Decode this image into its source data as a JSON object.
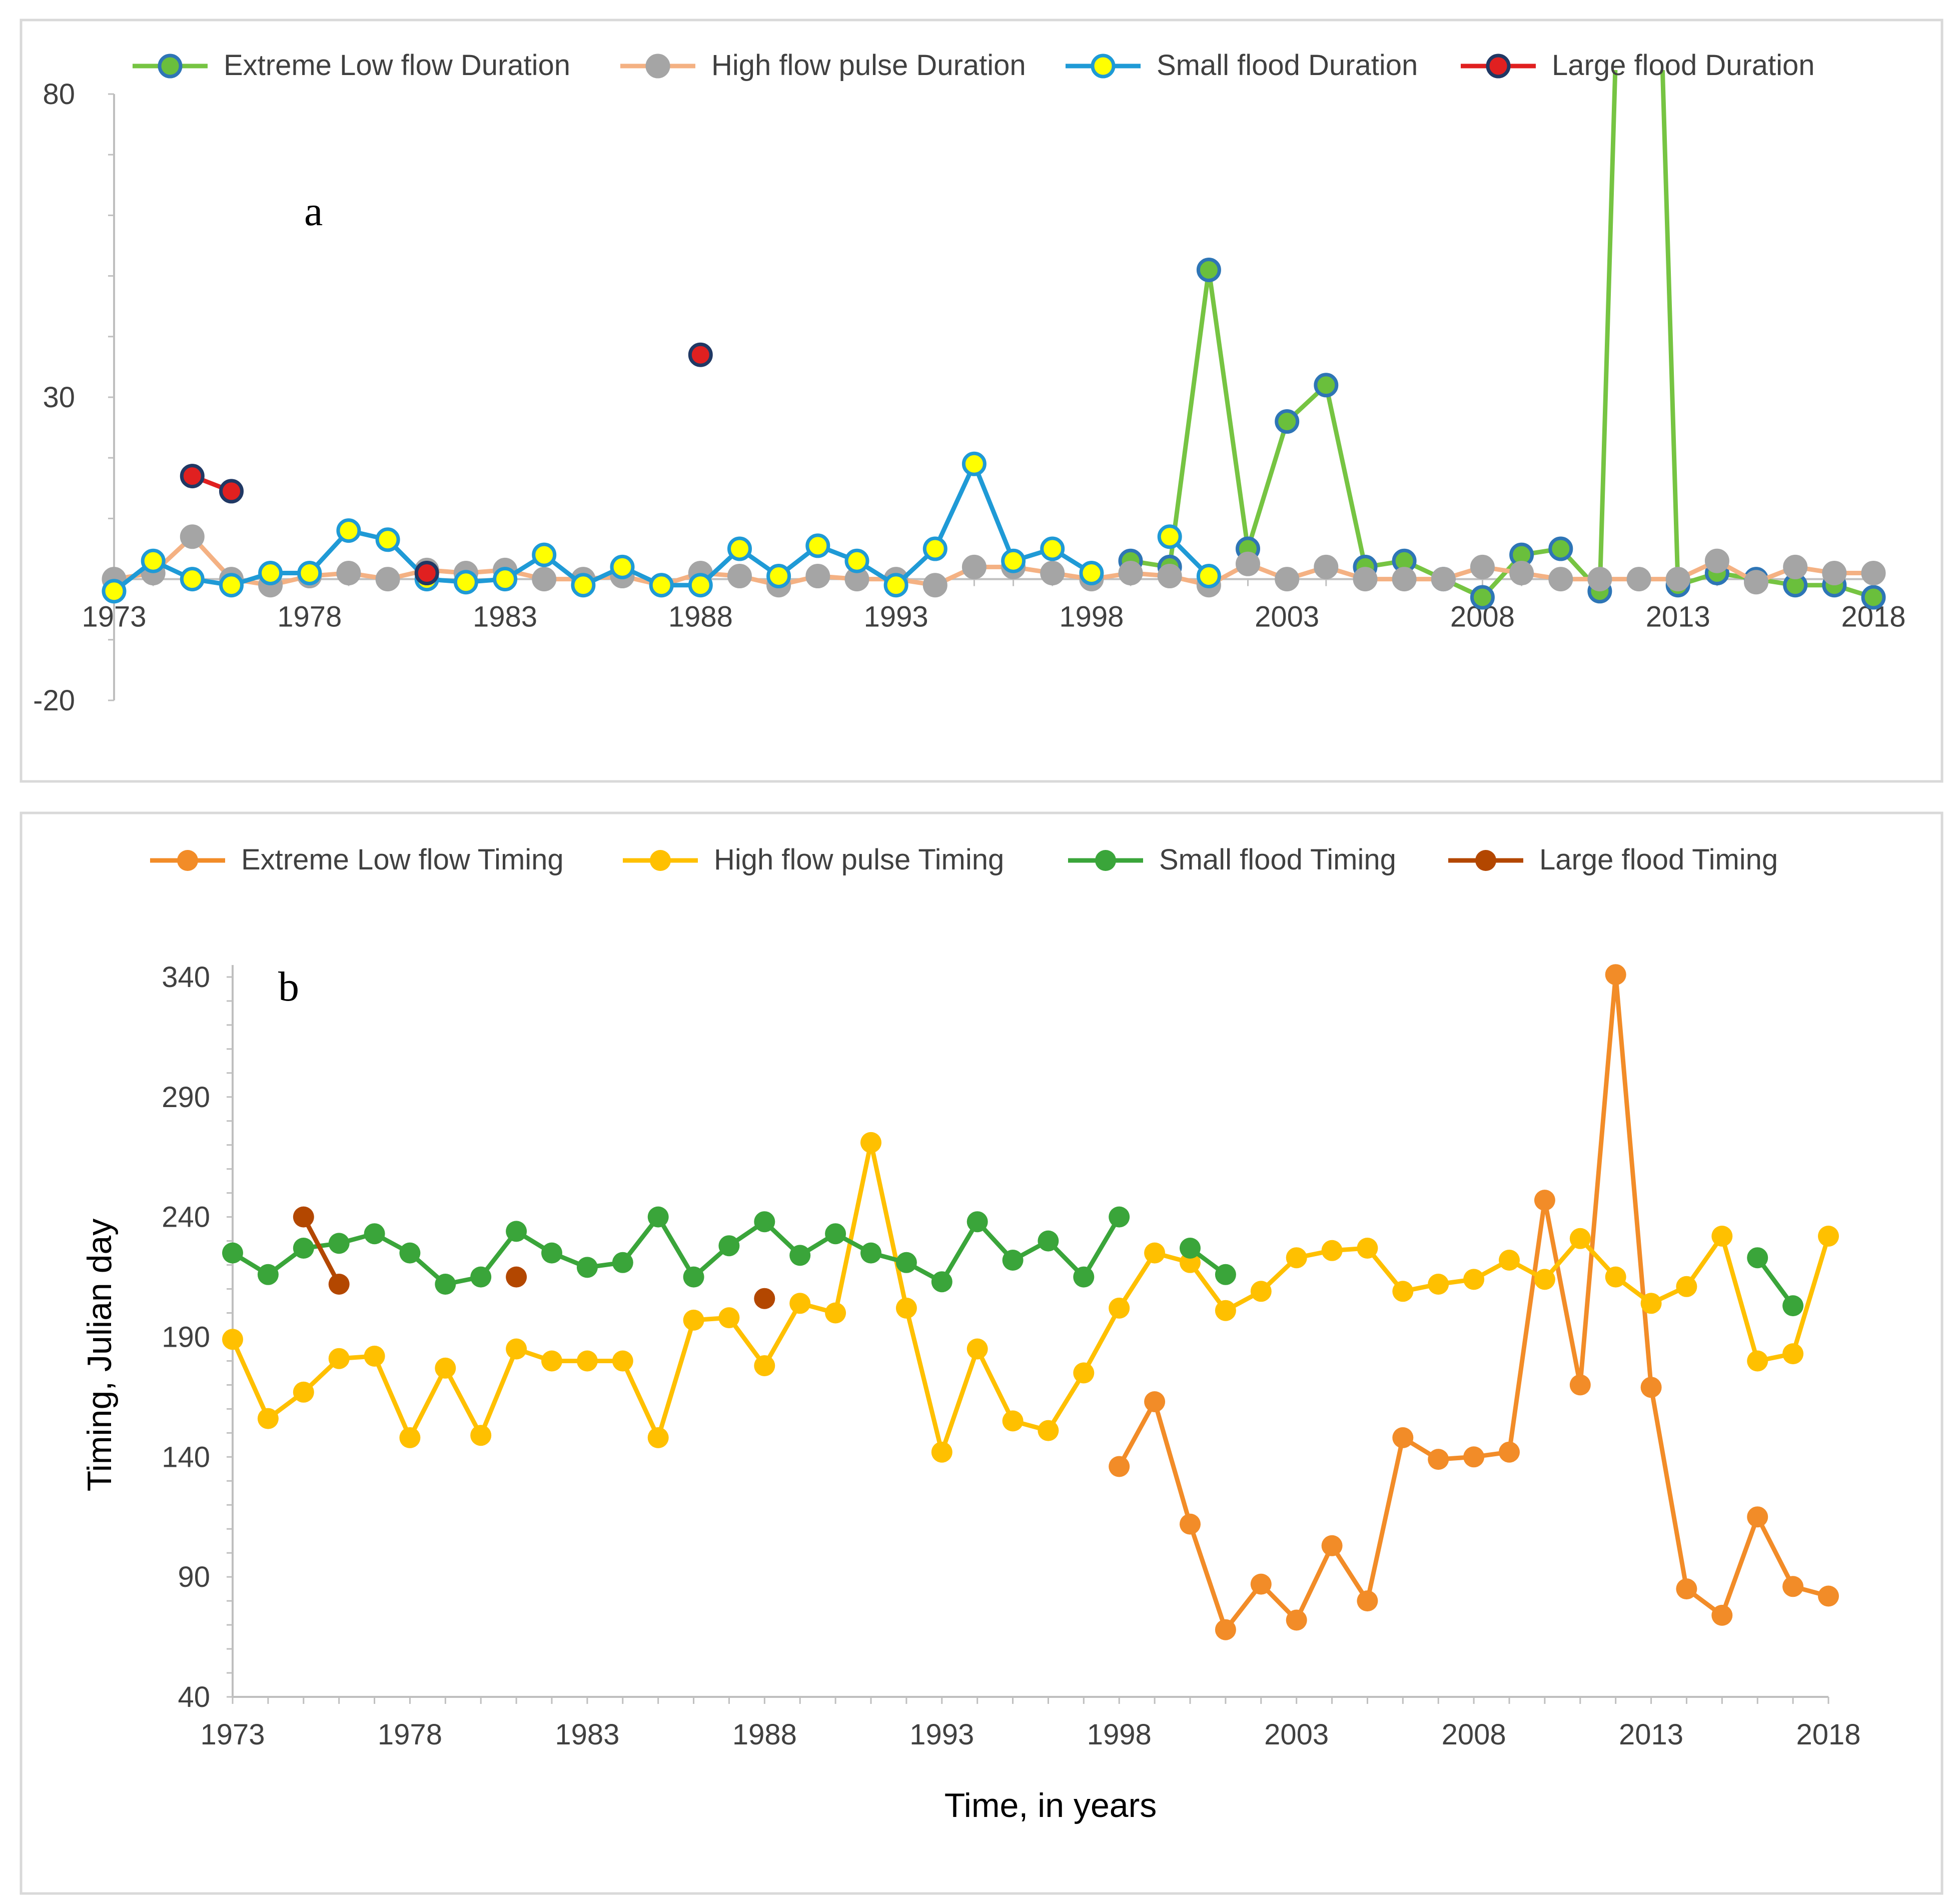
{
  "chart_data": [
    {
      "type": "line",
      "panel": "a",
      "title": "",
      "xlabel": "",
      "ylabel": "",
      "x_ticks": [
        "1973",
        "1978",
        "1983",
        "1988",
        "1993",
        "1998",
        "2003",
        "2008",
        "2013",
        "2018"
      ],
      "y_ticks": [
        "-20",
        "30",
        "80"
      ],
      "xlim": [
        1973,
        2018
      ],
      "ylim": [
        -20,
        80
      ],
      "x_axis_crossing_y": 0,
      "legend_position": "top",
      "series": [
        {
          "name": "Extreme Low flow Duration",
          "line_color": "#76c442",
          "marker_fill": "#6abf3c",
          "marker_edge": "#2e75b6",
          "points": [
            [
              1999,
              3
            ],
            [
              2000,
              2
            ],
            [
              2001,
              51
            ],
            [
              2002,
              5
            ],
            [
              2003,
              26
            ],
            [
              2004,
              32
            ],
            [
              2005,
              2
            ],
            [
              2006,
              3
            ],
            [
              2007,
              0
            ],
            [
              2008,
              -3
            ],
            [
              2009,
              4
            ],
            [
              2010,
              5
            ],
            [
              2011,
              -2
            ],
            [
              2011.4,
              85
            ],
            [
              2012.6,
              85
            ],
            [
              2013,
              -1
            ],
            [
              2014,
              1
            ],
            [
              2015,
              0
            ],
            [
              2016,
              -1
            ],
            [
              2017,
              -1
            ],
            [
              2018,
              -3
            ]
          ]
        },
        {
          "name": "High flow pulse Duration",
          "line_color": "#f4b183",
          "marker_fill": "#a5a5a5",
          "marker_edge": "#a5a5a5",
          "points": [
            [
              1973,
              0
            ],
            [
              1974,
              1
            ],
            [
              1975,
              7
            ],
            [
              1976,
              0
            ],
            [
              1977,
              -1
            ],
            [
              1978,
              0.5
            ],
            [
              1979,
              1
            ],
            [
              1980,
              0
            ],
            [
              1981,
              1.5
            ],
            [
              1982,
              1
            ],
            [
              1983,
              1.5
            ],
            [
              1984,
              0
            ],
            [
              1985,
              0
            ],
            [
              1986,
              0.5
            ],
            [
              1987,
              -1
            ],
            [
              1988,
              1
            ],
            [
              1989,
              0.5
            ],
            [
              1990,
              -1
            ],
            [
              1991,
              0.5
            ],
            [
              1992,
              0
            ],
            [
              1993,
              0
            ],
            [
              1994,
              -1
            ],
            [
              1995,
              2
            ],
            [
              1996,
              2
            ],
            [
              1997,
              1
            ],
            [
              1998,
              0
            ],
            [
              1999,
              1
            ],
            [
              2000,
              0.5
            ],
            [
              2001,
              -1
            ],
            [
              2002,
              2.5
            ],
            [
              2003,
              0
            ],
            [
              2004,
              2
            ],
            [
              2005,
              0
            ],
            [
              2006,
              0
            ],
            [
              2007,
              0
            ],
            [
              2008,
              2
            ],
            [
              2009,
              1
            ],
            [
              2010,
              0
            ],
            [
              2011,
              0
            ],
            [
              2012,
              0
            ],
            [
              2013,
              0
            ],
            [
              2014,
              3
            ],
            [
              2015,
              -0.5
            ],
            [
              2016,
              2
            ],
            [
              2017,
              1
            ],
            [
              2018,
              1
            ]
          ]
        },
        {
          "name": "Small flood Duration",
          "line_color": "#1f9ad6",
          "marker_fill": "#ffff00",
          "marker_edge": "#1f9ad6",
          "points": [
            [
              1973,
              -2
            ],
            [
              1974,
              3
            ],
            [
              1975,
              0
            ],
            [
              1976,
              -1
            ],
            [
              1977,
              1
            ],
            [
              1978,
              1
            ],
            [
              1979,
              8
            ],
            [
              1980,
              6.5
            ],
            [
              1981,
              0
            ],
            [
              1982,
              -0.5
            ],
            [
              1983,
              0
            ],
            [
              1984,
              4
            ],
            [
              1985,
              -1
            ],
            [
              1986,
              2
            ],
            [
              1987,
              -1
            ],
            [
              1988,
              -1
            ],
            [
              1989,
              5
            ],
            [
              1990,
              0.5
            ],
            [
              1991,
              5.5
            ],
            [
              1992,
              3
            ],
            [
              1993,
              -1
            ],
            [
              1994,
              5
            ],
            [
              1995,
              19
            ],
            [
              1996,
              3
            ],
            [
              1997,
              5
            ],
            [
              1998,
              1
            ],
            [
              1999,
              null
            ],
            [
              2000,
              7
            ],
            [
              2001,
              0.5
            ]
          ]
        },
        {
          "name": "Large flood Duration",
          "line_color": "#e02020",
          "marker_fill": "#e02020",
          "marker_edge": "#203864",
          "points": [
            [
              1975,
              17
            ],
            [
              1976,
              14.5
            ],
            [
              1977,
              null
            ],
            [
              1981,
              1
            ],
            [
              1982,
              null
            ],
            [
              1988,
              37
            ]
          ]
        }
      ]
    },
    {
      "type": "line",
      "panel": "b",
      "title": "",
      "xlabel": "Time, in years",
      "ylabel": "Timing, Julian day",
      "x_ticks": [
        "1973",
        "1978",
        "1983",
        "1988",
        "1993",
        "1998",
        "2003",
        "2008",
        "2013",
        "2018"
      ],
      "y_ticks": [
        "40",
        "90",
        "140",
        "190",
        "240",
        "290",
        "340"
      ],
      "xlim": [
        1973,
        2018
      ],
      "ylim": [
        40,
        350
      ],
      "legend_position": "top",
      "series": [
        {
          "name": "Extreme Low flow Timing",
          "line_color": "#f28c28",
          "marker_fill": "#f28c28",
          "marker_edge": "#f28c28",
          "points": [
            [
              1998,
              136
            ],
            [
              1999,
              163
            ],
            [
              2000,
              112
            ],
            [
              2001,
              68
            ],
            [
              2002,
              87
            ],
            [
              2003,
              72
            ],
            [
              2004,
              103
            ],
            [
              2005,
              80
            ],
            [
              2006,
              148
            ],
            [
              2007,
              139
            ],
            [
              2008,
              140
            ],
            [
              2009,
              142
            ],
            [
              2010,
              247
            ],
            [
              2011,
              170
            ],
            [
              2012,
              341
            ],
            [
              2013,
              169
            ],
            [
              2014,
              85
            ],
            [
              2015,
              74
            ],
            [
              2016,
              115
            ],
            [
              2017,
              86
            ],
            [
              2018,
              82
            ]
          ]
        },
        {
          "name": "High flow pulse Timing",
          "line_color": "#ffc000",
          "marker_fill": "#ffc000",
          "marker_edge": "#ffc000",
          "points": [
            [
              1973,
              189
            ],
            [
              1974,
              156
            ],
            [
              1975,
              167
            ],
            [
              1976,
              181
            ],
            [
              1977,
              182
            ],
            [
              1978,
              148
            ],
            [
              1979,
              177
            ],
            [
              1980,
              149
            ],
            [
              1981,
              185
            ],
            [
              1982,
              180
            ],
            [
              1983,
              180
            ],
            [
              1984,
              180
            ],
            [
              1985,
              148
            ],
            [
              1986,
              197
            ],
            [
              1987,
              198
            ],
            [
              1988,
              178
            ],
            [
              1989,
              204
            ],
            [
              1990,
              200
            ],
            [
              1991,
              271
            ],
            [
              1992,
              202
            ],
            [
              1993,
              142
            ],
            [
              1994,
              185
            ],
            [
              1995,
              155
            ],
            [
              1996,
              151
            ],
            [
              1997,
              175
            ],
            [
              1998,
              202
            ],
            [
              1999,
              225
            ],
            [
              2000,
              221
            ],
            [
              2001,
              201
            ],
            [
              2002,
              209
            ],
            [
              2003,
              223
            ],
            [
              2004,
              226
            ],
            [
              2005,
              227
            ],
            [
              2006,
              209
            ],
            [
              2007,
              212
            ],
            [
              2008,
              214
            ],
            [
              2009,
              222
            ],
            [
              2010,
              214
            ],
            [
              2011,
              231
            ],
            [
              2012,
              215
            ],
            [
              2013,
              204
            ],
            [
              2014,
              211
            ],
            [
              2015,
              232
            ],
            [
              2016,
              180
            ],
            [
              2017,
              183
            ],
            [
              2018,
              232
            ]
          ]
        },
        {
          "name": "Small flood Timing",
          "line_color": "#3aa53a",
          "marker_fill": "#3aa53a",
          "marker_edge": "#3aa53a",
          "points": [
            [
              1973,
              225
            ],
            [
              1974,
              216
            ],
            [
              1975,
              227
            ],
            [
              1976,
              229
            ],
            [
              1977,
              233
            ],
            [
              1978,
              225
            ],
            [
              1979,
              212
            ],
            [
              1980,
              215
            ],
            [
              1981,
              234
            ],
            [
              1982,
              225
            ],
            [
              1983,
              219
            ],
            [
              1984,
              221
            ],
            [
              1985,
              240
            ],
            [
              1986,
              215
            ],
            [
              1987,
              228
            ],
            [
              1988,
              238
            ],
            [
              1989,
              224
            ],
            [
              1990,
              233
            ],
            [
              1991,
              225
            ],
            [
              1992,
              221
            ],
            [
              1993,
              213
            ],
            [
              1994,
              238
            ],
            [
              1995,
              222
            ],
            [
              1996,
              230
            ],
            [
              1997,
              215
            ],
            [
              1998,
              240
            ],
            [
              1999,
              null
            ],
            [
              2000,
              227
            ],
            [
              2001,
              216
            ],
            [
              2002,
              null
            ],
            [
              2016,
              223
            ],
            [
              2017,
              203
            ]
          ]
        },
        {
          "name": "Large flood Timing",
          "line_color": "#b34700",
          "marker_fill": "#b34700",
          "marker_edge": "#b34700",
          "points": [
            [
              1975,
              240
            ],
            [
              1976,
              212
            ],
            [
              1977,
              null
            ],
            [
              1981,
              215
            ],
            [
              1982,
              null
            ],
            [
              1988,
              206
            ]
          ]
        }
      ]
    }
  ],
  "panels": {
    "a": {
      "letter": "a"
    },
    "b": {
      "letter": "b"
    }
  }
}
